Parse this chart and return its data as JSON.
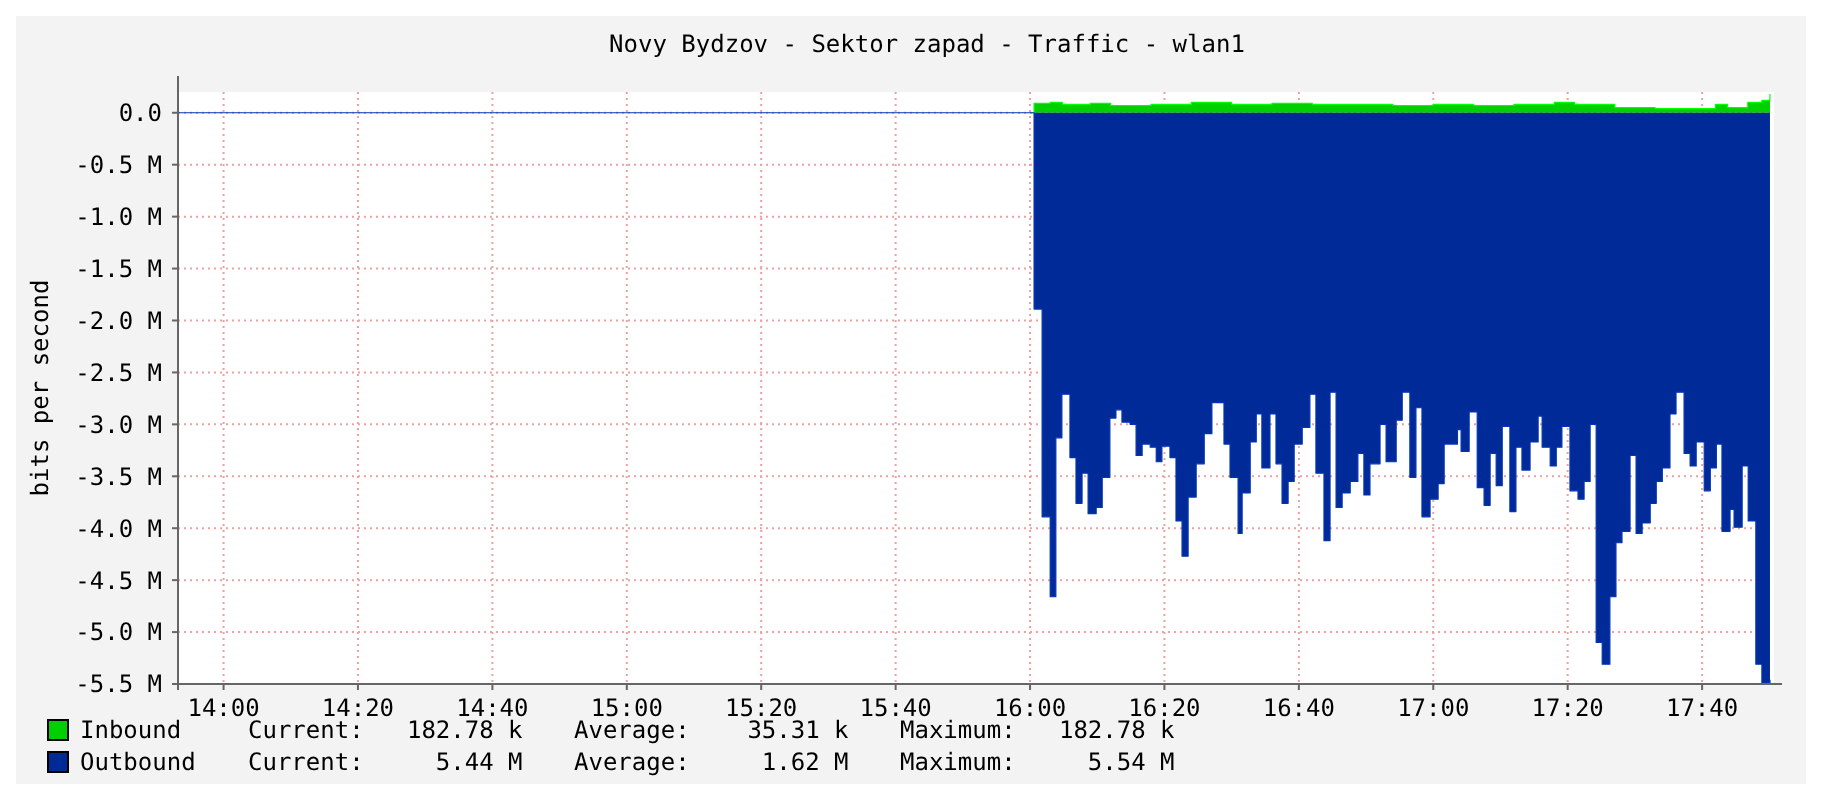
{
  "chart_data": {
    "type": "area",
    "title": "Novy Bydzov - Sektor zapad - Traffic - wlan1",
    "ylabel": "bits per second",
    "xlim": [
      13.887,
      17.845
    ],
    "xticks": [
      {
        "value": 14,
        "label": "14:00"
      },
      {
        "value": 14.3333,
        "label": "14:20"
      },
      {
        "value": 14.6667,
        "label": "14:40"
      },
      {
        "value": 15,
        "label": "15:00"
      },
      {
        "value": 15.3333,
        "label": "15:20"
      },
      {
        "value": 15.6667,
        "label": "15:40"
      },
      {
        "value": 16,
        "label": "16:00"
      },
      {
        "value": 16.3333,
        "label": "16:20"
      },
      {
        "value": 16.6667,
        "label": "16:40"
      },
      {
        "value": 17,
        "label": "17:00"
      },
      {
        "value": 17.3333,
        "label": "17:20"
      },
      {
        "value": 17.6667,
        "label": "17:40"
      }
    ],
    "ylim": [
      -5.5,
      0.2
    ],
    "yticks": [
      {
        "value": 0,
        "label": "0.0"
      },
      {
        "value": -0.5,
        "label": "-0.5 M"
      },
      {
        "value": -1,
        "label": "-1.0 M"
      },
      {
        "value": -1.5,
        "label": "-1.5 M"
      },
      {
        "value": -2,
        "label": "-2.0 M"
      },
      {
        "value": -2.5,
        "label": "-2.5 M"
      },
      {
        "value": -3,
        "label": "-3.0 M"
      },
      {
        "value": -3.5,
        "label": "-3.5 M"
      },
      {
        "value": -4,
        "label": "-4.0 M"
      },
      {
        "value": -4.5,
        "label": "-4.5 M"
      },
      {
        "value": -5,
        "label": "-5.0 M"
      },
      {
        "value": -5.5,
        "label": "-5.5 M"
      }
    ],
    "grid": true,
    "legend": "bottom",
    "series": [
      {
        "name": "Inbound",
        "color": "#00cf00",
        "x": [
          16.0,
          16.01,
          16.05,
          16.08,
          16.15,
          16.2,
          16.3,
          16.4,
          16.5,
          16.6,
          16.7,
          16.8,
          16.9,
          17.0,
          17.1,
          17.2,
          17.3,
          17.35,
          17.45,
          17.55,
          17.65,
          17.7,
          17.73,
          17.78,
          17.815,
          17.835
        ],
        "values": [
          0,
          0.09,
          0.1,
          0.08,
          0.09,
          0.07,
          0.08,
          0.1,
          0.08,
          0.09,
          0.08,
          0.08,
          0.07,
          0.08,
          0.07,
          0.08,
          0.1,
          0.08,
          0.05,
          0.04,
          0.04,
          0.08,
          0.05,
          0.1,
          0.12,
          0.18
        ]
      },
      {
        "name": "Outbound",
        "color": "#002a97",
        "x": [
          13.887,
          16.0,
          16.01,
          16.03,
          16.05,
          16.064,
          16.079,
          16.099,
          16.114,
          16.129,
          16.144,
          16.164,
          16.179,
          16.198,
          16.213,
          16.228,
          16.248,
          16.263,
          16.278,
          16.298,
          16.313,
          16.327,
          16.347,
          16.362,
          16.377,
          16.392,
          16.412,
          16.432,
          16.451,
          16.481,
          16.496,
          16.516,
          16.526,
          16.546,
          16.561,
          16.575,
          16.595,
          16.61,
          16.625,
          16.64,
          16.655,
          16.675,
          16.694,
          16.709,
          16.729,
          16.744,
          16.759,
          16.774,
          16.794,
          16.813,
          16.828,
          16.843,
          16.868,
          16.883,
          16.908,
          16.923,
          16.942,
          16.957,
          16.972,
          16.992,
          17.012,
          17.027,
          17.06,
          17.069,
          17.089,
          17.109,
          17.126,
          17.141,
          17.156,
          17.171,
          17.19,
          17.205,
          17.22,
          17.24,
          17.26,
          17.27,
          17.29,
          17.305,
          17.319,
          17.339,
          17.359,
          17.374,
          17.389,
          17.404,
          17.419,
          17.438,
          17.453,
          17.468,
          17.488,
          17.503,
          17.518,
          17.538,
          17.553,
          17.568,
          17.587,
          17.602,
          17.622,
          17.637,
          17.652,
          17.672,
          17.687,
          17.702,
          17.716,
          17.736,
          17.746,
          17.766,
          17.781,
          17.8,
          17.815,
          17.835
        ],
        "values": [
          0,
          0,
          -1.89,
          -3.89,
          -4.66,
          -3.13,
          -2.71,
          -3.32,
          -3.76,
          -3.47,
          -3.86,
          -3.8,
          -3.51,
          -2.94,
          -2.86,
          -2.98,
          -3.0,
          -3.3,
          -3.19,
          -3.22,
          -3.36,
          -3.21,
          -3.32,
          -3.93,
          -4.27,
          -3.7,
          -3.38,
          -3.09,
          -2.79,
          -3.19,
          -3.51,
          -4.05,
          -3.66,
          -3.17,
          -2.9,
          -3.42,
          -2.9,
          -3.38,
          -3.76,
          -3.55,
          -3.19,
          -3.03,
          -2.71,
          -3.47,
          -4.12,
          -2.69,
          -3.8,
          -3.66,
          -3.55,
          -3.28,
          -3.68,
          -3.38,
          -3.0,
          -3.36,
          -2.96,
          -2.69,
          -3.51,
          -2.84,
          -3.89,
          -3.72,
          -3.57,
          -3.19,
          -3.05,
          -3.26,
          -2.88,
          -3.61,
          -3.78,
          -3.28,
          -3.59,
          -3.02,
          -3.84,
          -3.22,
          -3.44,
          -3.17,
          -2.92,
          -3.22,
          -3.4,
          -3.22,
          -3.02,
          -3.64,
          -3.72,
          -3.55,
          -3.0,
          -5.1,
          -5.31,
          -4.66,
          -4.14,
          -4.03,
          -3.3,
          -4.05,
          -3.95,
          -3.76,
          -3.55,
          -3.42,
          -2.9,
          -2.69,
          -3.28,
          -3.4,
          -3.17,
          -3.64,
          -3.42,
          -3.19,
          -4.03,
          -3.82,
          -3.99,
          -3.4,
          -3.93,
          -5.31,
          -5.49,
          -5.46
        ]
      }
    ],
    "annotations": [
      "Current:   182.78 k",
      "Average:    35.31 k",
      "Maximum:   182.78 k",
      "Current:     5.44 M",
      "Average:     1.62 M",
      "Maximum:     5.54 M"
    ]
  }
}
